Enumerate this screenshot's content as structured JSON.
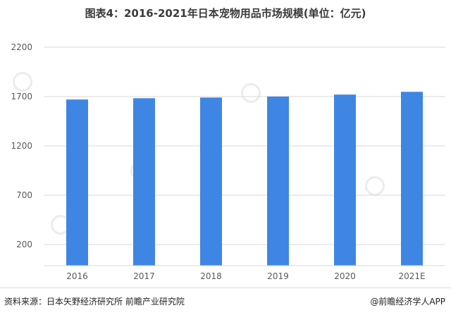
{
  "title": "图表4：2016-2021年日本宠物用品市场规模(单位：亿元)",
  "footer": {
    "source": "资料来源：日本矢野经济研究所 前瞻产业研究院",
    "credit": "@前瞻经济学人APP"
  },
  "colors": {
    "bar": "#3f86e4",
    "grid": "#d9d9d9",
    "axis_text": "#595959"
  },
  "chart_data": {
    "type": "bar",
    "title": "图表4：2016-2021年日本宠物用品市场规模(单位：亿元)",
    "categories": [
      "2016",
      "2017",
      "2018",
      "2019",
      "2020",
      "2021E"
    ],
    "values": [
      1670,
      1683,
      1690,
      1700,
      1720,
      1748
    ],
    "yticks": [
      200,
      700,
      1200,
      1700,
      2200
    ],
    "ylim": [
      0,
      2200
    ],
    "xlabel": "",
    "ylabel": "",
    "grid": true,
    "legend": "none"
  }
}
